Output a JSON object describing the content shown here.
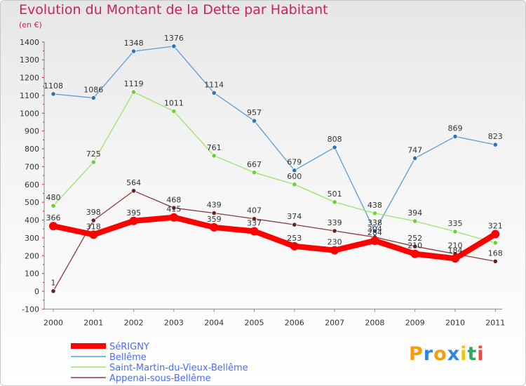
{
  "title": "Evolution du Montant de la Dette par Habitant",
  "unit": "(en €)",
  "logo": {
    "text": "Proxiti",
    "letters": [
      {
        "ch": "P",
        "color": "#f39c12"
      },
      {
        "ch": "r",
        "color": "#2e86de"
      },
      {
        "ch": "o",
        "color": "#f39c12"
      },
      {
        "ch": "x",
        "color": "#2e86de"
      },
      {
        "ch": "i",
        "color": "#f1c40f"
      },
      {
        "ch": "t",
        "color": "#27ae60"
      },
      {
        "ch": "i",
        "color": "#e74c3c"
      }
    ]
  },
  "chart_data": {
    "type": "line",
    "categories": [
      "2000",
      "2001",
      "2002",
      "2003",
      "2004",
      "2005",
      "2006",
      "2007",
      "2008",
      "2009",
      "2010",
      "2011"
    ],
    "ylim": [
      -100,
      1400
    ],
    "yticks": [
      -100,
      0,
      100,
      200,
      300,
      400,
      500,
      600,
      700,
      800,
      900,
      1000,
      1100,
      1200,
      1300,
      1400
    ],
    "grid": false,
    "legend_position": "bottom-left",
    "series": [
      {
        "name": "Bellême",
        "color": "#5b9bd5",
        "point_color": "#2e75b6",
        "values": [
          1108,
          1086,
          1348,
          1376,
          1114,
          957,
          679,
          808,
          338,
          747,
          869,
          823
        ],
        "labels": [
          "1108",
          "1086",
          "1348",
          "1376",
          "1114",
          "957",
          "679",
          "808",
          "338",
          "747",
          "869",
          "823"
        ]
      },
      {
        "name": "Saint-Martin-du-Vieux-Bellême",
        "color": "#9be36b",
        "point_color": "#6fcf3a",
        "values": [
          480,
          725,
          1119,
          1011,
          761,
          667,
          600,
          501,
          438,
          394,
          335,
          272
        ],
        "labels": [
          "480",
          "725",
          "1119",
          "1011",
          "761",
          "667",
          "600",
          "501",
          "438",
          "394",
          "335",
          ""
        ]
      },
      {
        "name": "Appenai-sous-Bellême",
        "color": "#8b3a3a",
        "point_color": "#6b1f1f",
        "values": [
          1,
          398,
          564,
          468,
          439,
          407,
          374,
          339,
          304,
          252,
          210,
          168
        ],
        "labels": [
          "1",
          "398",
          "564",
          "468",
          "439",
          "407",
          "374",
          "339",
          "304",
          "252",
          "210",
          "168"
        ]
      },
      {
        "name": "SéRIGNY",
        "color": "#ff0000",
        "point_color": "#ff0000",
        "values": [
          366,
          318,
          395,
          415,
          359,
          337,
          253,
          230,
          284,
          210,
          184,
          321
        ],
        "labels": [
          "366",
          "318",
          "395",
          "415",
          "359",
          "337",
          "253",
          "230",
          "284",
          "210",
          "184",
          "321"
        ]
      }
    ]
  }
}
